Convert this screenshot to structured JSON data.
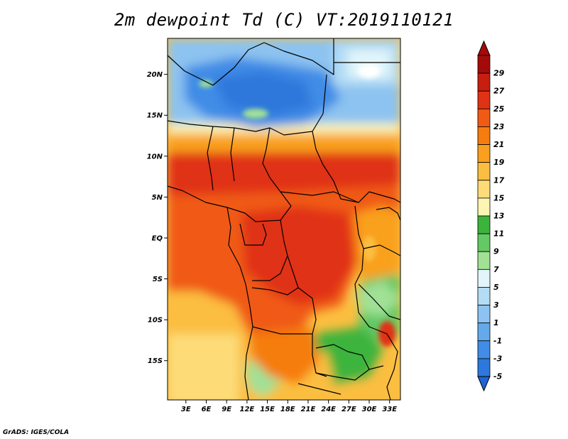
{
  "title": "2m dewpoint Td (C) VT:2019110121",
  "credit": "GrADS: IGES/COLA",
  "lat_ticks": [
    {
      "value": 20,
      "label": "20N"
    },
    {
      "value": 15,
      "label": "15N"
    },
    {
      "value": 10,
      "label": "10N"
    },
    {
      "value": 5,
      "label": "5N"
    },
    {
      "value": 0,
      "label": "EQ"
    },
    {
      "value": -5,
      "label": "5S"
    },
    {
      "value": -10,
      "label": "10S"
    },
    {
      "value": -15,
      "label": "15S"
    }
  ],
  "lon_ticks": [
    {
      "value": 3,
      "label": "3E"
    },
    {
      "value": 6,
      "label": "6E"
    },
    {
      "value": 9,
      "label": "9E"
    },
    {
      "value": 12,
      "label": "12E"
    },
    {
      "value": 15,
      "label": "15E"
    },
    {
      "value": 18,
      "label": "18E"
    },
    {
      "value": 21,
      "label": "21E"
    },
    {
      "value": 24,
      "label": "24E"
    },
    {
      "value": 27,
      "label": "27E"
    },
    {
      "value": 30,
      "label": "30E"
    },
    {
      "value": 33,
      "label": "33E"
    }
  ],
  "extent": {
    "lon_min": 0.3,
    "lon_max": 34.6,
    "lat_min": -19.8,
    "lat_max": 24.4
  },
  "colorbar": {
    "levels": [
      {
        "label": "29",
        "color": "#a50a0a"
      },
      {
        "label": "27",
        "color": "#c81e0f"
      },
      {
        "label": "25",
        "color": "#e03214"
      },
      {
        "label": "23",
        "color": "#f05a14"
      },
      {
        "label": "21",
        "color": "#f57d0f"
      },
      {
        "label": "19",
        "color": "#f9a01e"
      },
      {
        "label": "17",
        "color": "#fbbe41"
      },
      {
        "label": "15",
        "color": "#fddc78"
      },
      {
        "label": "13",
        "color": "#fdf5b4"
      },
      {
        "label": "11",
        "color": "#3cb43c"
      },
      {
        "label": "9",
        "color": "#64c864"
      },
      {
        "label": "7",
        "color": "#a0e196"
      },
      {
        "label": "5",
        "color": "#e1f5fa"
      },
      {
        "label": "3",
        "color": "#b4dcf5"
      },
      {
        "label": "1",
        "color": "#8cc3f0"
      },
      {
        "label": "-1",
        "color": "#64aaeb"
      },
      {
        "label": "-3",
        "color": "#418ce6"
      },
      {
        "label": "-5",
        "color": "#2d78dc"
      }
    ],
    "top_color": "#a50a0a",
    "bottom_color": "#1e64d2"
  }
}
